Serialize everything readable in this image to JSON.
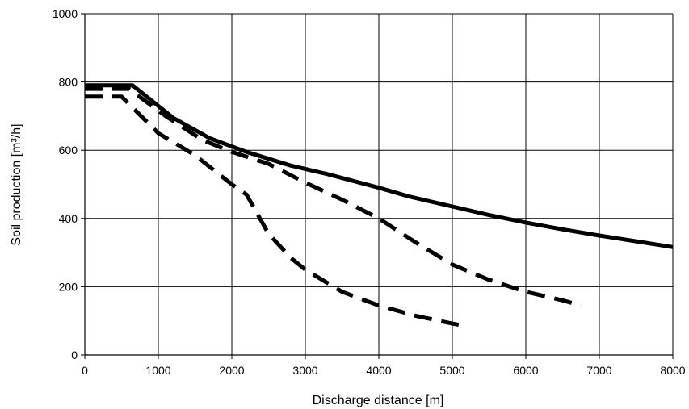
{
  "chart_data": {
    "type": "line",
    "title": "",
    "xlabel": "Discharge distance [m]",
    "ylabel": "Soil production [m³/h]",
    "xlim": [
      0,
      8000
    ],
    "ylim": [
      0,
      1000
    ],
    "x_ticks": [
      0,
      1000,
      2000,
      3000,
      4000,
      5000,
      6000,
      7000,
      8000
    ],
    "y_ticks": [
      0,
      200,
      400,
      600,
      800,
      1000
    ],
    "x_tick_labels": [
      "0",
      "1000",
      "2000",
      "3000",
      "4000",
      "5000",
      "6000",
      "7000",
      "8000"
    ],
    "y_tick_labels": [
      "0",
      "200",
      "400",
      "600",
      "800",
      "1000"
    ],
    "grid": true,
    "legend": false,
    "series": [
      {
        "style": "solid",
        "color": "#000000",
        "points": [
          [
            0,
            790
          ],
          [
            650,
            790
          ],
          [
            1200,
            695
          ],
          [
            1700,
            635
          ],
          [
            2200,
            595
          ],
          [
            2800,
            555
          ],
          [
            3300,
            530
          ],
          [
            4000,
            490
          ],
          [
            4400,
            465
          ],
          [
            5000,
            435
          ],
          [
            5500,
            410
          ],
          [
            6000,
            388
          ],
          [
            6500,
            368
          ],
          [
            7000,
            350
          ],
          [
            7500,
            333
          ],
          [
            8000,
            316
          ]
        ]
      },
      {
        "style": "dashed",
        "color": "#000000",
        "points": [
          [
            0,
            780
          ],
          [
            600,
            780
          ],
          [
            1100,
            700
          ],
          [
            1600,
            630
          ],
          [
            2000,
            595
          ],
          [
            2500,
            560
          ],
          [
            3000,
            505
          ],
          [
            3500,
            455
          ],
          [
            4000,
            400
          ],
          [
            4500,
            330
          ],
          [
            5000,
            265
          ],
          [
            5500,
            220
          ],
          [
            6000,
            185
          ],
          [
            6500,
            160
          ],
          [
            6750,
            145
          ]
        ]
      },
      {
        "style": "dashed",
        "color": "#000000",
        "points": [
          [
            0,
            757
          ],
          [
            500,
            757
          ],
          [
            1000,
            650
          ],
          [
            1500,
            585
          ],
          [
            2000,
            500
          ],
          [
            2200,
            470
          ],
          [
            2500,
            355
          ],
          [
            2800,
            285
          ],
          [
            3000,
            250
          ],
          [
            3500,
            185
          ],
          [
            4000,
            145
          ],
          [
            4500,
            115
          ],
          [
            5000,
            92
          ],
          [
            5100,
            88
          ]
        ]
      }
    ]
  }
}
